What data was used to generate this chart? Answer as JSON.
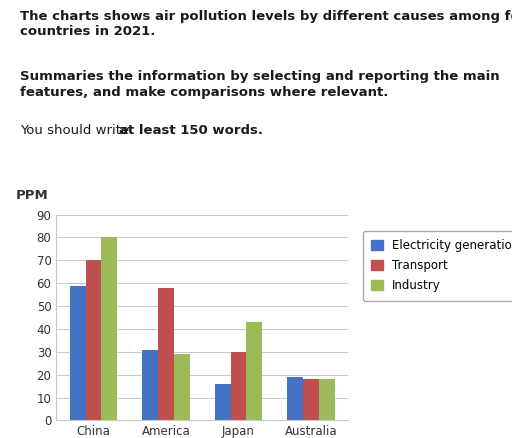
{
  "title_line1": "The charts shows air pollution levels by different causes among four",
  "title_line2": "countries in 2021.",
  "subtitle_line1": "Summaries the information by selecting and reporting the main",
  "subtitle_line2": "features, and make comparisons where relevant.",
  "instruction_normal": "You should write ",
  "instruction_bold": "at least 150 words.",
  "categories": [
    "China",
    "America",
    "Japan",
    "Australia"
  ],
  "series": [
    {
      "label": "Electricity generation",
      "color": "#4472C4",
      "values": [
        59,
        31,
        16,
        19
      ]
    },
    {
      "label": "Transport",
      "color": "#C0504D",
      "values": [
        70,
        58,
        30,
        18
      ]
    },
    {
      "label": "Industry",
      "color": "#9BBB59",
      "values": [
        80,
        29,
        43,
        18
      ]
    }
  ],
  "ylabel": "PPM",
  "ylim": [
    0,
    90
  ],
  "yticks": [
    0,
    10,
    20,
    30,
    40,
    50,
    60,
    70,
    80,
    90
  ],
  "background_color": "#ffffff",
  "grid_color": "#c8c8c8",
  "bar_width": 0.22,
  "legend_fontsize": 8.5,
  "tick_fontsize": 8.5,
  "text_color": "#1a1a1a",
  "title_fontsize": 9.5,
  "subtitle_fontsize": 9.5,
  "instr_fontsize": 9.5
}
